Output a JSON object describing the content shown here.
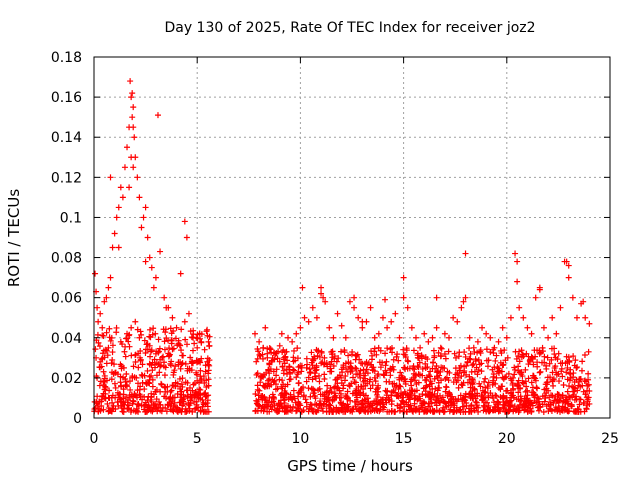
{
  "chart_data": {
    "type": "scatter",
    "title": "Day 130 of 2025, Rate Of TEC Index for receiver joz2",
    "xlabel": "GPS time / hours",
    "ylabel": "ROTI / TECUs",
    "xlim": [
      0,
      25
    ],
    "ylim": [
      0,
      0.18
    ],
    "xticks": [
      0,
      5,
      10,
      15,
      20,
      25
    ],
    "xtick_labels": [
      "0",
      "5",
      "10",
      "15",
      "20",
      "25"
    ],
    "yticks": [
      0,
      0.02,
      0.04,
      0.06,
      0.08,
      0.1,
      0.12,
      0.14,
      0.16,
      0.18
    ],
    "ytick_labels": [
      "0",
      "0.02",
      "0.04",
      "0.06",
      "0.08",
      "0.1",
      "0.12",
      "0.14",
      "0.16",
      "0.18"
    ],
    "grid": true,
    "marker": "+",
    "color": "#ff0000",
    "series": [
      {
        "name": "ROTI",
        "x": [
          0.05,
          0.1,
          0.15,
          0.2,
          0.3,
          0.4,
          0.5,
          0.6,
          0.7,
          0.8,
          0.9,
          1.0,
          1.1,
          1.2,
          1.3,
          1.4,
          1.5,
          1.6,
          1.7,
          1.75,
          1.8,
          1.85,
          1.9,
          1.95,
          2.0,
          2.1,
          2.2,
          2.3,
          2.4,
          2.5,
          2.6,
          2.7,
          2.8,
          2.9,
          3.0,
          3.2,
          3.4,
          3.6,
          3.8,
          4.0,
          4.2,
          4.4,
          4.6,
          4.8,
          5.0,
          5.2,
          5.5,
          0.1,
          0.3,
          0.7,
          1.3,
          1.6,
          1.8,
          2.0,
          2.2,
          2.7,
          3.0,
          3.3,
          3.7,
          4.4,
          4.5,
          1.9,
          1.8,
          1.7,
          1.85,
          1.9,
          3.1,
          3.5,
          0.8,
          1.2,
          2.5,
          0.15,
          0.45,
          0.95,
          1.45,
          2.35,
          2.85,
          3.25,
          3.95,
          4.65,
          5.15,
          0.55,
          1.05,
          1.55,
          2.05,
          2.55,
          3.05,
          3.55,
          4.05,
          4.55,
          5.05,
          0.25,
          0.75,
          1.25,
          1.75,
          2.25,
          2.75,
          3.15,
          3.75,
          4.25,
          4.75,
          5.45,
          0.35,
          0.65,
          1.15,
          1.65,
          2.15,
          2.65,
          3.45,
          3.85,
          4.35,
          4.85,
          5.25,
          7.8,
          8.0,
          8.2,
          8.4,
          8.6,
          8.8,
          9.0,
          9.2,
          9.4,
          9.6,
          9.8,
          10.0,
          10.2,
          10.4,
          10.6,
          10.8,
          11.0,
          11.2,
          11.4,
          11.6,
          11.8,
          12.0,
          12.2,
          12.4,
          12.6,
          12.8,
          13.0,
          13.2,
          13.4,
          13.6,
          13.8,
          14.0,
          14.2,
          14.4,
          14.6,
          14.8,
          15.0,
          15.2,
          15.4,
          15.6,
          15.8,
          16.0,
          16.2,
          16.4,
          16.6,
          16.8,
          17.0,
          17.2,
          17.4,
          17.6,
          17.8,
          18.0,
          18.2,
          18.4,
          18.6,
          18.8,
          19.0,
          19.2,
          19.4,
          19.6,
          19.8,
          20.0,
          20.2,
          20.4,
          20.6,
          20.8,
          21.0,
          21.2,
          21.4,
          21.6,
          21.8,
          22.0,
          22.2,
          22.4,
          22.6,
          22.8,
          23.0,
          23.2,
          23.4,
          23.6,
          23.8,
          24.0,
          8.3,
          9.1,
          10.1,
          11.0,
          11.1,
          12.6,
          13.0,
          14.1,
          15.0,
          16.6,
          17.9,
          18.0,
          20.5,
          20.5,
          21.6,
          22.9,
          23.0,
          23.7,
          8.1,
          8.7,
          9.5,
          10.3,
          10.9,
          11.7,
          12.3,
          12.9,
          13.5,
          14.3,
          14.9,
          15.5,
          16.1,
          16.9,
          17.5,
          18.3,
          18.9,
          19.5,
          20.1,
          20.9,
          21.3,
          21.9,
          22.5,
          23.1,
          23.5,
          23.9,
          8.5,
          9.3,
          9.9,
          10.7,
          11.3,
          11.9,
          12.7,
          13.3,
          13.9,
          14.7,
          15.3,
          15.9,
          16.5,
          17.3,
          17.9,
          18.5,
          19.1,
          19.9,
          20.7,
          21.5,
          22.1,
          22.7,
          23.3,
          24.0
        ],
        "y": [
          0.072,
          0.063,
          0.055,
          0.048,
          0.052,
          0.045,
          0.058,
          0.06,
          0.065,
          0.07,
          0.085,
          0.092,
          0.1,
          0.105,
          0.115,
          0.11,
          0.125,
          0.135,
          0.145,
          0.168,
          0.16,
          0.15,
          0.155,
          0.14,
          0.13,
          0.12,
          0.11,
          0.095,
          0.1,
          0.105,
          0.09,
          0.08,
          0.075,
          0.065,
          0.07,
          0.083,
          0.06,
          0.055,
          0.05,
          0.045,
          0.072,
          0.048,
          0.052,
          0.04,
          0.035,
          0.038,
          0.041,
          0.03,
          0.028,
          0.035,
          0.038,
          0.042,
          0.045,
          0.048,
          0.04,
          0.036,
          0.032,
          0.03,
          0.027,
          0.098,
          0.09,
          0.125,
          0.13,
          0.115,
          0.162,
          0.145,
          0.151,
          0.055,
          0.12,
          0.085,
          0.078,
          0.02,
          0.018,
          0.022,
          0.025,
          0.021,
          0.019,
          0.017,
          0.016,
          0.015,
          0.014,
          0.012,
          0.015,
          0.018,
          0.02,
          0.017,
          0.014,
          0.013,
          0.012,
          0.011,
          0.01,
          0.008,
          0.01,
          0.012,
          0.014,
          0.011,
          0.009,
          0.008,
          0.007,
          0.009,
          0.01,
          0.011,
          0.006,
          0.007,
          0.008,
          0.009,
          0.007,
          0.006,
          0.005,
          0.006,
          0.007,
          0.008,
          0.009,
          0.042,
          0.038,
          0.035,
          0.03,
          0.028,
          0.032,
          0.036,
          0.03,
          0.04,
          0.038,
          0.042,
          0.045,
          0.05,
          0.048,
          0.055,
          0.05,
          0.065,
          0.058,
          0.045,
          0.04,
          0.052,
          0.046,
          0.04,
          0.058,
          0.06,
          0.05,
          0.045,
          0.048,
          0.055,
          0.04,
          0.042,
          0.05,
          0.045,
          0.048,
          0.052,
          0.04,
          0.06,
          0.055,
          0.045,
          0.04,
          0.035,
          0.042,
          0.038,
          0.04,
          0.045,
          0.035,
          0.042,
          0.04,
          0.05,
          0.048,
          0.055,
          0.06,
          0.04,
          0.035,
          0.038,
          0.045,
          0.042,
          0.04,
          0.035,
          0.038,
          0.045,
          0.04,
          0.05,
          0.082,
          0.055,
          0.05,
          0.045,
          0.042,
          0.06,
          0.065,
          0.045,
          0.04,
          0.05,
          0.042,
          0.055,
          0.078,
          0.07,
          0.06,
          0.05,
          0.057,
          0.05,
          0.047,
          0.045,
          0.042,
          0.065,
          0.062,
          0.06,
          0.055,
          0.048,
          0.059,
          0.07,
          0.06,
          0.058,
          0.082,
          0.078,
          0.068,
          0.064,
          0.078,
          0.076,
          0.058,
          0.02,
          0.018,
          0.022,
          0.025,
          0.021,
          0.019,
          0.023,
          0.02,
          0.024,
          0.018,
          0.021,
          0.022,
          0.019,
          0.025,
          0.02,
          0.023,
          0.018,
          0.02,
          0.022,
          0.024,
          0.021,
          0.026,
          0.022,
          0.02,
          0.018,
          0.016,
          0.01,
          0.012,
          0.008,
          0.011,
          0.009,
          0.01,
          0.012,
          0.008,
          0.009,
          0.011,
          0.01,
          0.007,
          0.012,
          0.009,
          0.01,
          0.008,
          0.011,
          0.006,
          0.009,
          0.01,
          0.008,
          0.011,
          0.009,
          0.007
        ]
      }
    ],
    "dense_bands": [
      {
        "x_start": 0.0,
        "x_end": 5.6,
        "y_low": 0.003,
        "y_high": 0.045
      },
      {
        "x_start": 7.8,
        "x_end": 24.0,
        "y_low": 0.003,
        "y_high": 0.035
      }
    ]
  }
}
